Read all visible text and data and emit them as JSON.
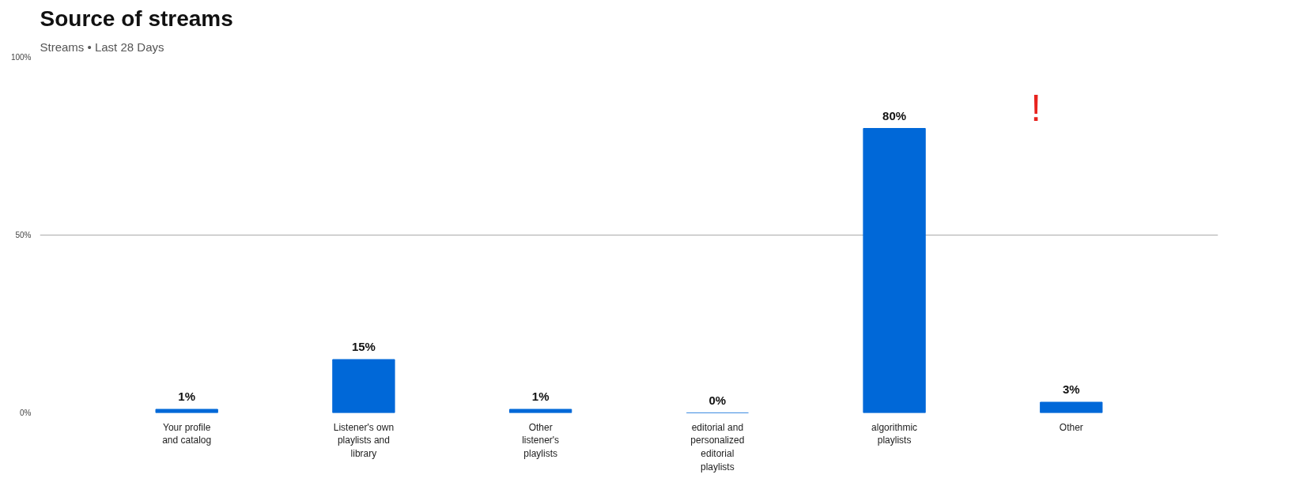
{
  "chart_data": {
    "type": "bar",
    "title": "Source of streams",
    "subtitle": "Streams • Last 28 Days",
    "categories": [
      "Your profile and catalog",
      "Listener's own playlists and library",
      "Other listener's playlists",
      "editorial and personalized editorial playlists",
      "algorithmic playlists",
      "Other"
    ],
    "values": [
      1,
      15,
      1,
      0,
      80,
      3
    ],
    "value_labels": [
      "1%",
      "15%",
      "1%",
      "0%",
      "80%",
      "3%"
    ],
    "color": "#0068d8",
    "ylim": [
      0,
      100
    ],
    "yticks": [
      {
        "value": 0,
        "label": "0%"
      },
      {
        "value": 50,
        "label": "50%"
      },
      {
        "value": 100,
        "label": "100%"
      }
    ],
    "grid": "y",
    "annotations": [
      "!"
    ]
  }
}
